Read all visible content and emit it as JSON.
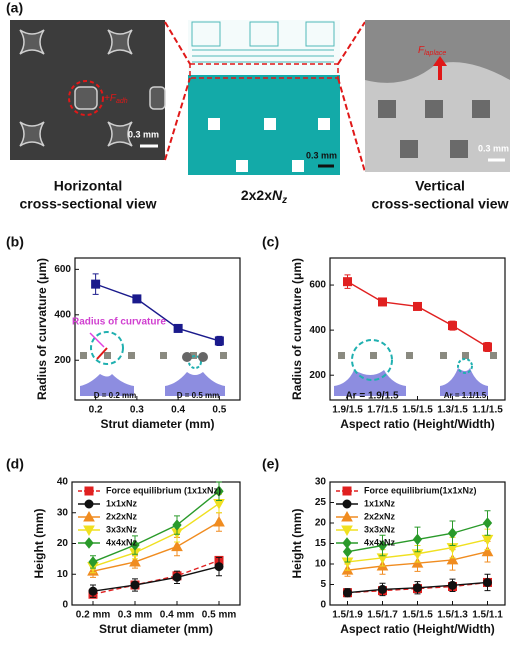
{
  "panel_a": {
    "label": "(a)",
    "left": {
      "force": {
        "prefix": "+",
        "symbol": "F",
        "subscript": "adh"
      },
      "scale": "0.3 mm",
      "caption": [
        "Horizontal",
        "cross-sectional view"
      ]
    },
    "middle": {
      "scale": "0.3 mm",
      "caption": {
        "text": "2x2x",
        "symbol": "N",
        "subscript": "z"
      }
    },
    "right": {
      "force": {
        "symbol": "F",
        "subscript": "laplace"
      },
      "scale": "0.3 mm",
      "caption": [
        "Vertical",
        "cross-sectional view"
      ]
    }
  },
  "chart_data": [
    {
      "type": "line",
      "label": "(b)",
      "x": [
        0.2,
        0.3,
        0.4,
        0.5
      ],
      "values": [
        535,
        470,
        340,
        285
      ],
      "errors": [
        45,
        10,
        15,
        20
      ],
      "color": "#1a1a8c",
      "xlim": [
        0.15,
        0.55
      ],
      "xticks": [
        0.2,
        0.3,
        0.4,
        0.5
      ],
      "ylim": [
        25,
        650
      ],
      "yticks": [
        200,
        400,
        600
      ],
      "xlabel": "Strut diameter (mm)",
      "ylabel": "Radius of curvature (μm)",
      "annotations": [
        "Radius of curvature",
        "D = 0.2 mm",
        "D = 0.5 mm"
      ]
    },
    {
      "type": "line",
      "label": "(c)",
      "categories": [
        "1.9/1.5",
        "1.7/1.5",
        "1.5/1.5",
        "1.3/1.5",
        "1.1/1.5"
      ],
      "values": [
        615,
        525,
        505,
        420,
        325
      ],
      "errors": [
        30,
        15,
        15,
        20,
        20
      ],
      "color": "#e02020",
      "ylim": [
        90,
        720
      ],
      "yticks": [
        200,
        400,
        600
      ],
      "xlabel": "Aspect ratio (Height/Width)",
      "ylabel": "Radius of curvature (μm)",
      "annotations": [
        "Ar = 1.9/1.5",
        "Ar = 1.1/1.5"
      ]
    },
    {
      "type": "multiline",
      "label": "(d)",
      "categories": [
        "0.2 mm",
        "0.3 mm",
        "0.4 mm",
        "0.5 mm"
      ],
      "ylim": [
        0,
        40
      ],
      "yticks": [
        0,
        10,
        20,
        30,
        40
      ],
      "xlabel": "Strut diameter (mm)",
      "ylabel": "Height (mm)",
      "series": [
        {
          "name": "Force equilibrium (1x1xNz)",
          "color": "#e02020",
          "marker": "square",
          "dashed": true,
          "values": [
            3.5,
            6.5,
            9.5,
            14.5
          ]
        },
        {
          "name": "1x1xNz",
          "color": "#111111",
          "marker": "circle",
          "values": [
            4.5,
            6.5,
            9,
            12.5
          ],
          "errors": [
            2,
            2,
            2,
            3
          ]
        },
        {
          "name": "2x2xNz",
          "color": "#f08c20",
          "marker": "triangle-up",
          "values": [
            11,
            14,
            19,
            27
          ],
          "errors": [
            2,
            2,
            3,
            3
          ]
        },
        {
          "name": "3x3xNz",
          "color": "#f0e020",
          "marker": "triangle-down",
          "values": [
            12.5,
            17,
            23.5,
            33
          ],
          "errors": [
            2,
            2,
            3,
            3
          ]
        },
        {
          "name": "4x4xNz",
          "color": "#2a9a2a",
          "marker": "diamond",
          "values": [
            14,
            19.5,
            26,
            37
          ],
          "errors": [
            2,
            3,
            3,
            3
          ]
        }
      ]
    },
    {
      "type": "multiline",
      "label": "(e)",
      "categories": [
        "1.5/1.9",
        "1.5/1.7",
        "1.5/1.5",
        "1.5/1.3",
        "1.5/1.1"
      ],
      "ylim": [
        0,
        30
      ],
      "yticks": [
        0,
        5,
        10,
        15,
        20,
        25,
        30
      ],
      "xlabel": "Aspect ratio (Height/Width)",
      "ylabel": "Height (mm)",
      "series": [
        {
          "name": "Force equilibrium(1x1xNz)",
          "color": "#e02020",
          "marker": "square",
          "dashed": true,
          "values": [
            3,
            3.5,
            4,
            4.5,
            5.5
          ]
        },
        {
          "name": "1x1xNz",
          "color": "#111111",
          "marker": "circle",
          "values": [
            3,
            3.8,
            4.2,
            4.8,
            5.5
          ],
          "errors": [
            1,
            1.5,
            1.5,
            1.5,
            2
          ]
        },
        {
          "name": "2x2xNz",
          "color": "#f08c20",
          "marker": "triangle-up",
          "values": [
            8.5,
            9.5,
            10.2,
            11,
            13
          ],
          "errors": [
            1.5,
            2,
            2,
            2.5,
            2.5
          ]
        },
        {
          "name": "3x3xNz",
          "color": "#f0e020",
          "marker": "triangle-down",
          "values": [
            10.5,
            11.5,
            12.5,
            14,
            16
          ],
          "errors": [
            2,
            2,
            2,
            2.5,
            2.5
          ]
        },
        {
          "name": "4x4xNz",
          "color": "#2a9a2a",
          "marker": "diamond",
          "values": [
            13,
            14.5,
            16,
            17.5,
            20
          ],
          "errors": [
            2.5,
            2.5,
            3,
            3,
            3
          ]
        }
      ]
    }
  ]
}
